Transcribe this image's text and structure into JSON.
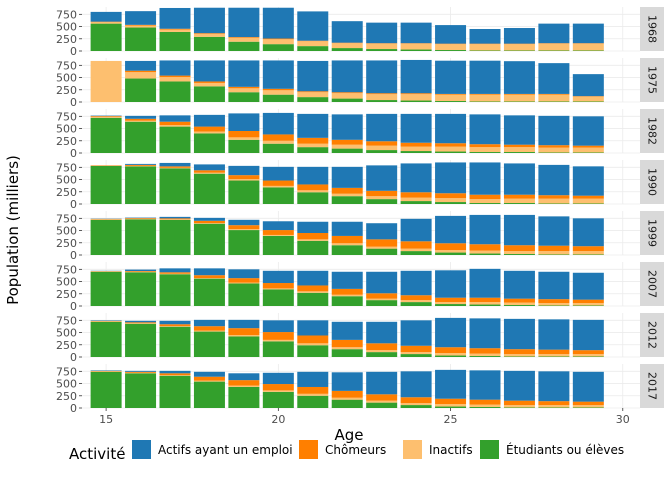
{
  "chart_data": {
    "type": "bar",
    "stacked": true,
    "faceted": true,
    "xlabel": "Age",
    "ylabel": "Population (milliers)",
    "xlim": [
      14.3,
      30.5
    ],
    "ylim": [
      0,
      900
    ],
    "x_ticks": [
      15,
      20,
      25,
      30
    ],
    "y_ticks": [
      0,
      250,
      500,
      750
    ],
    "grid": true,
    "legend_position": "bottom",
    "legend_title": "Activité",
    "series_order": [
      "Étudiants ou élèves",
      "Inactifs",
      "Chômeurs",
      "Actifs ayant un emploi"
    ],
    "legend_order": [
      "Actifs ayant un emploi",
      "Chômeurs",
      "Inactifs",
      "Étudiants ou élèves"
    ],
    "colors": {
      "Actifs ayant un emploi": "#1f78b4",
      "Chômeurs": "#ff7f00",
      "Inactifs": "#fdbf6f",
      "Étudiants ou élèves": "#33a02c"
    },
    "ages": [
      15,
      16,
      17,
      18,
      19,
      20,
      21,
      22,
      23,
      24,
      25,
      26,
      27,
      28,
      29
    ],
    "panels": [
      {
        "label": "1968",
        "series": [
          {
            "name": "Étudiants ou élèves",
            "values": [
              560,
              480,
              390,
              290,
              190,
              140,
              100,
              60,
              40,
              30,
              20,
              10,
              10,
              10,
              10
            ]
          },
          {
            "name": "Inactifs",
            "values": [
              30,
              40,
              50,
              60,
              80,
              100,
              100,
              100,
              110,
              120,
              120,
              130,
              130,
              140,
              140
            ]
          },
          {
            "name": "Chômeurs",
            "values": [
              10,
              15,
              15,
              15,
              15,
              15,
              10,
              10,
              10,
              10,
              10,
              10,
              10,
              10,
              10
            ]
          },
          {
            "name": "Actifs ayant un emploi",
            "values": [
              200,
              280,
              425,
              520,
              600,
              630,
              600,
              440,
              420,
              420,
              380,
              300,
              320,
              400,
              400
            ]
          }
        ]
      },
      {
        "label": "1975",
        "series": [
          {
            "name": "Étudiants ou élèves",
            "values": [
              0,
              480,
              420,
              320,
              200,
              150,
              100,
              70,
              40,
              30,
              20,
              10,
              10,
              10,
              10
            ]
          },
          {
            "name": "Inactifs",
            "values": [
              840,
              130,
              90,
              70,
              80,
              90,
              100,
              110,
              120,
              130,
              130,
              140,
              140,
              140,
              100
            ]
          },
          {
            "name": "Chômeurs",
            "values": [
              0,
              30,
              30,
              30,
              30,
              30,
              20,
              20,
              20,
              20,
              15,
              15,
              15,
              15,
              10
            ]
          },
          {
            "name": "Actifs ayant un emploi",
            "values": [
              0,
              200,
              310,
              430,
              540,
              580,
              620,
              650,
              670,
              680,
              680,
              680,
              670,
              630,
              450
            ]
          }
        ]
      },
      {
        "label": "1982",
        "series": [
          {
            "name": "Étudiants ou élèves",
            "values": [
              720,
              640,
              540,
              400,
              270,
              190,
              120,
              90,
              60,
              40,
              30,
              20,
              20,
              10,
              10
            ]
          },
          {
            "name": "Inactifs",
            "values": [
              20,
              20,
              30,
              40,
              50,
              60,
              70,
              80,
              90,
              90,
              100,
              100,
              100,
              100,
              100
            ]
          },
          {
            "name": "Chômeurs",
            "values": [
              15,
              40,
              70,
              100,
              130,
              130,
              120,
              100,
              90,
              80,
              70,
              60,
              50,
              50,
              40
            ]
          },
          {
            "name": "Actifs ayant un emploi",
            "values": [
              10,
              60,
              130,
              240,
              360,
              440,
              490,
              520,
              560,
              590,
              600,
              610,
              600,
              600,
              600
            ]
          }
        ]
      },
      {
        "label": "1990",
        "series": [
          {
            "name": "Étudiants ou élèves",
            "values": [
              780,
              770,
              730,
              620,
              480,
              340,
              240,
              160,
              100,
              60,
              40,
              20,
              20,
              10,
              10
            ]
          },
          {
            "name": "Inactifs",
            "values": [
              0,
              10,
              10,
              20,
              30,
              30,
              40,
              50,
              60,
              70,
              80,
              80,
              90,
              100,
              100
            ]
          },
          {
            "name": "Chômeurs",
            "values": [
              10,
              20,
              30,
              50,
              80,
              110,
              120,
              120,
              110,
              110,
              100,
              90,
              80,
              70,
              60
            ]
          },
          {
            "name": "Actifs ayant un emploi",
            "values": [
              0,
              20,
              70,
              120,
              190,
              280,
              360,
              430,
              520,
              590,
              630,
              660,
              640,
              620,
              600
            ]
          }
        ]
      },
      {
        "label": "1999",
        "series": [
          {
            "name": "Étudiants ou élèves",
            "values": [
              720,
              730,
              720,
              640,
              510,
              390,
              290,
              200,
              130,
              80,
              50,
              30,
              20,
              10,
              10
            ]
          },
          {
            "name": "Inactifs",
            "values": [
              10,
              10,
              10,
              10,
              20,
              20,
              30,
              40,
              40,
              50,
              50,
              60,
              60,
              70,
              70
            ]
          },
          {
            "name": "Chômeurs",
            "values": [
              10,
              15,
              20,
              50,
              80,
              100,
              130,
              150,
              150,
              150,
              140,
              130,
              120,
              110,
              100
            ]
          },
          {
            "name": "Actifs ayant un emploi",
            "values": [
              5,
              10,
              30,
              60,
              110,
              180,
              230,
              290,
              330,
              460,
              560,
              600,
              620,
              600,
              570
            ]
          }
        ]
      },
      {
        "label": "2007",
        "series": [
          {
            "name": "Étudiants ou élèves",
            "values": [
              700,
              690,
              650,
              560,
              460,
              340,
              270,
              200,
              120,
              80,
              40,
              30,
              20,
              10,
              10
            ]
          },
          {
            "name": "Inactifs",
            "values": [
              10,
              10,
              10,
              10,
              20,
              20,
              30,
              30,
              30,
              40,
              40,
              50,
              50,
              50,
              50
            ]
          },
          {
            "name": "Chômeurs",
            "values": [
              5,
              15,
              30,
              60,
              90,
              110,
              120,
              120,
              110,
              100,
              90,
              90,
              80,
              80,
              70
            ]
          },
          {
            "name": "Actifs ayant un emploi",
            "values": [
              5,
              30,
              80,
              140,
              180,
              250,
              300,
              350,
              440,
              500,
              560,
              590,
              570,
              560,
              550
            ]
          }
        ]
      },
      {
        "label": "2012",
        "series": [
          {
            "name": "Étudiants ou élèves",
            "values": [
              720,
              680,
              620,
              520,
              420,
              320,
              240,
              160,
              100,
              60,
              30,
              20,
              10,
              10,
              10
            ]
          },
          {
            "name": "Inactifs",
            "values": [
              10,
              10,
              10,
              20,
              30,
              30,
              40,
              40,
              40,
              40,
              50,
              50,
              50,
              50,
              50
            ]
          },
          {
            "name": "Chômeurs",
            "values": [
              10,
              20,
              40,
              90,
              140,
              160,
              160,
              150,
              140,
              130,
              120,
              110,
              100,
              90,
              80
            ]
          },
          {
            "name": "Actifs ayant un emploi",
            "values": [
              10,
              30,
              70,
              130,
              170,
              240,
              310,
              370,
              440,
              520,
              600,
              610,
              620,
              620,
              620
            ]
          }
        ]
      },
      {
        "label": "2017",
        "series": [
          {
            "name": "Étudiants ou élèves",
            "values": [
              740,
              710,
              660,
              540,
              430,
              330,
              250,
              170,
              110,
              60,
              30,
              20,
              10,
              10,
              10
            ]
          },
          {
            "name": "Inactifs",
            "values": [
              10,
              10,
              10,
              20,
              30,
              30,
              40,
              40,
              40,
              40,
              50,
              50,
              50,
              50,
              50
            ]
          },
          {
            "name": "Chômeurs",
            "values": [
              10,
              20,
              40,
              80,
              110,
              130,
              140,
              140,
              130,
              120,
              110,
              100,
              90,
              80,
              70
            ]
          },
          {
            "name": "Actifs ayant un emploi",
            "values": [
              10,
              20,
              50,
              100,
              140,
              230,
              310,
              380,
              460,
              530,
              590,
              600,
              610,
              610,
              610
            ]
          }
        ]
      }
    ]
  }
}
